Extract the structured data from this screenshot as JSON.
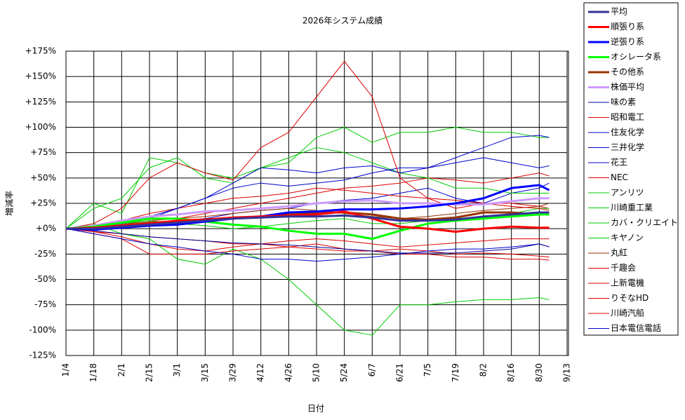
{
  "chart_data": {
    "type": "line",
    "title": "2026年システム成績",
    "x_label": "日付",
    "y_label": "増減率",
    "x": [
      0,
      14,
      28,
      42,
      56,
      70,
      84,
      98,
      112,
      126,
      140,
      154,
      168,
      182,
      196,
      210,
      224,
      238,
      243
    ],
    "xlim": [
      0,
      252
    ],
    "xticks": [
      {
        "value": 0,
        "label": "1/4"
      },
      {
        "value": 14,
        "label": "1/18"
      },
      {
        "value": 28,
        "label": "2/1"
      },
      {
        "value": 42,
        "label": "2/15"
      },
      {
        "value": 56,
        "label": "3/1"
      },
      {
        "value": 70,
        "label": "3/15"
      },
      {
        "value": 84,
        "label": "3/29"
      },
      {
        "value": 98,
        "label": "4/12"
      },
      {
        "value": 112,
        "label": "4/26"
      },
      {
        "value": 126,
        "label": "5/10"
      },
      {
        "value": 140,
        "label": "5/24"
      },
      {
        "value": 154,
        "label": "6/7"
      },
      {
        "value": 168,
        "label": "6/21"
      },
      {
        "value": 182,
        "label": "7/5"
      },
      {
        "value": 196,
        "label": "7/19"
      },
      {
        "value": 210,
        "label": "8/2"
      },
      {
        "value": 224,
        "label": "8/16"
      },
      {
        "value": 238,
        "label": "8/30"
      },
      {
        "value": 252,
        "label": "9/13"
      }
    ],
    "ylim": [
      -125,
      175
    ],
    "yticks": [
      {
        "value": 175,
        "label": "+175%"
      },
      {
        "value": 150,
        "label": "+150%"
      },
      {
        "value": 125,
        "label": "+125%"
      },
      {
        "value": 100,
        "label": "+100%"
      },
      {
        "value": 75,
        "label": "+75%"
      },
      {
        "value": 50,
        "label": "+50%"
      },
      {
        "value": 25,
        "label": "+25%"
      },
      {
        "value": 0,
        "label": "+0%"
      },
      {
        "value": -25,
        "label": "-25%"
      },
      {
        "value": -50,
        "label": "-50%"
      },
      {
        "value": -75,
        "label": "-75%"
      },
      {
        "value": -100,
        "label": "-100%"
      },
      {
        "value": -125,
        "label": "-125%"
      }
    ],
    "grid": true,
    "series": [
      {
        "name": "平均",
        "color": "#333399",
        "width": 3,
        "values": [
          0,
          0,
          2,
          4,
          6,
          8,
          10,
          11,
          12,
          12,
          13,
          11,
          8,
          8,
          9,
          12,
          14,
          16,
          16
        ]
      },
      {
        "name": "順張り系",
        "color": "#ff0000",
        "width": 3,
        "values": [
          0,
          1,
          3,
          5,
          8,
          9,
          11,
          12,
          13,
          14,
          17,
          10,
          2,
          0,
          -3,
          0,
          2,
          1,
          1
        ]
      },
      {
        "name": "逆張り系",
        "color": "#0000ff",
        "width": 3,
        "values": [
          0,
          -1,
          1,
          3,
          4,
          7,
          10,
          12,
          16,
          17,
          19,
          19,
          20,
          22,
          25,
          30,
          40,
          43,
          38
        ]
      },
      {
        "name": "オシレータ系",
        "color": "#00ff00",
        "width": 3,
        "values": [
          0,
          2,
          6,
          10,
          10,
          7,
          4,
          2,
          -2,
          -5,
          -5,
          -10,
          -2,
          5,
          8,
          10,
          12,
          14,
          14
        ]
      },
      {
        "name": "その他系",
        "color": "#993300",
        "width": 3,
        "values": [
          0,
          1,
          3,
          6,
          7,
          9,
          10,
          12,
          14,
          16,
          16,
          14,
          10,
          9,
          11,
          16,
          16,
          14,
          15
        ]
      },
      {
        "name": "株価平均",
        "color": "#cc99ff",
        "width": 3,
        "values": [
          0,
          3,
          8,
          12,
          14,
          17,
          18,
          20,
          22,
          25,
          27,
          28,
          25,
          25,
          24,
          24,
          27,
          30,
          30
        ]
      },
      {
        "name": "味の素",
        "color": "#000099",
        "width": 1,
        "values": [
          0,
          -2,
          -5,
          -8,
          -10,
          -12,
          -14,
          -15,
          -16,
          -18,
          -20,
          -22,
          -24,
          -24,
          -24,
          -22,
          -20,
          -15,
          -18
        ]
      },
      {
        "name": "昭和電工",
        "color": "#dd0000",
        "width": 1,
        "values": [
          0,
          5,
          20,
          50,
          65,
          55,
          48,
          80,
          95,
          130,
          165,
          130,
          50,
          30,
          20,
          25,
          22,
          20,
          18
        ]
      },
      {
        "name": "住友化学",
        "color": "#0000cc",
        "width": 1,
        "values": [
          0,
          2,
          5,
          10,
          20,
          30,
          45,
          60,
          58,
          55,
          60,
          62,
          55,
          60,
          70,
          80,
          90,
          92,
          90
        ]
      },
      {
        "name": "三井化学",
        "color": "#0000cc",
        "width": 1,
        "values": [
          0,
          2,
          6,
          12,
          20,
          30,
          40,
          45,
          42,
          45,
          48,
          55,
          60,
          60,
          65,
          70,
          65,
          60,
          62
        ]
      },
      {
        "name": "花王",
        "color": "#0000cc",
        "width": 1,
        "values": [
          0,
          -5,
          -10,
          -15,
          -18,
          -22,
          -25,
          -30,
          -30,
          -32,
          -30,
          -28,
          -25,
          -22,
          -20,
          -20,
          -18,
          -15,
          -18
        ]
      },
      {
        "name": "NEC",
        "color": "#dd0000",
        "width": 1,
        "values": [
          0,
          -5,
          -10,
          -25,
          -25,
          -25,
          -22,
          -20,
          -18,
          -15,
          -20,
          -22,
          -25,
          -25,
          -28,
          -28,
          -30,
          -30,
          -31
        ]
      },
      {
        "name": "アンリツ",
        "color": "#00cc00",
        "width": 1,
        "values": [
          0,
          5,
          -5,
          -10,
          -30,
          -35,
          -20,
          -30,
          -50,
          -75,
          -100,
          -105,
          -75,
          -75,
          -72,
          -70,
          -70,
          -68,
          -70
        ]
      },
      {
        "name": "川崎重工業",
        "color": "#00cc00",
        "width": 1,
        "values": [
          0,
          25,
          15,
          70,
          65,
          55,
          50,
          60,
          65,
          90,
          100,
          85,
          95,
          95,
          100,
          95,
          95,
          90,
          90
        ]
      },
      {
        "name": "カバ・クリエイト",
        "color": "#00cc00",
        "width": 1,
        "values": [
          0,
          20,
          30,
          60,
          70,
          50,
          45,
          60,
          70,
          80,
          75,
          65,
          55,
          50,
          40,
          40,
          35,
          35,
          35
        ]
      },
      {
        "name": "キヤノン",
        "color": "#00cc00",
        "width": 1,
        "values": [
          0,
          3,
          5,
          8,
          5,
          3,
          0,
          2,
          5,
          8,
          10,
          5,
          5,
          8,
          10,
          12,
          15,
          20,
          20
        ]
      },
      {
        "name": "丸紅",
        "color": "#993300",
        "width": 1,
        "values": [
          0,
          2,
          4,
          8,
          10,
          12,
          15,
          18,
          20,
          18,
          15,
          12,
          10,
          12,
          15,
          18,
          20,
          22,
          25
        ]
      },
      {
        "name": "千趣会",
        "color": "#dd0000",
        "width": 1,
        "values": [
          0,
          -3,
          -5,
          -8,
          -10,
          -12,
          -15,
          -15,
          -18,
          -20,
          -22,
          -22,
          -20,
          -22,
          -25,
          -24,
          -25,
          -27,
          -28
        ]
      },
      {
        "name": "上新電機",
        "color": "#dd0000",
        "width": 1,
        "values": [
          0,
          3,
          8,
          15,
          20,
          25,
          30,
          32,
          35,
          40,
          38,
          35,
          32,
          30,
          28,
          25,
          25,
          22,
          20
        ]
      },
      {
        "name": "りそなHD",
        "color": "#dd0000",
        "width": 1,
        "values": [
          0,
          -3,
          -8,
          -15,
          -20,
          -22,
          -18,
          -15,
          -12,
          -10,
          -12,
          -15,
          -18,
          -16,
          -14,
          -12,
          -10,
          -10,
          -10
        ]
      },
      {
        "name": "川崎汽船",
        "color": "#dd0000",
        "width": 1,
        "values": [
          0,
          2,
          5,
          8,
          10,
          15,
          20,
          25,
          30,
          35,
          40,
          42,
          45,
          50,
          48,
          45,
          50,
          55,
          52
        ]
      },
      {
        "name": "日本電信電話",
        "color": "#0000cc",
        "width": 1,
        "values": [
          0,
          1,
          3,
          5,
          8,
          10,
          15,
          18,
          20,
          25,
          28,
          30,
          35,
          40,
          30,
          25,
          35,
          40,
          45
        ]
      }
    ]
  }
}
